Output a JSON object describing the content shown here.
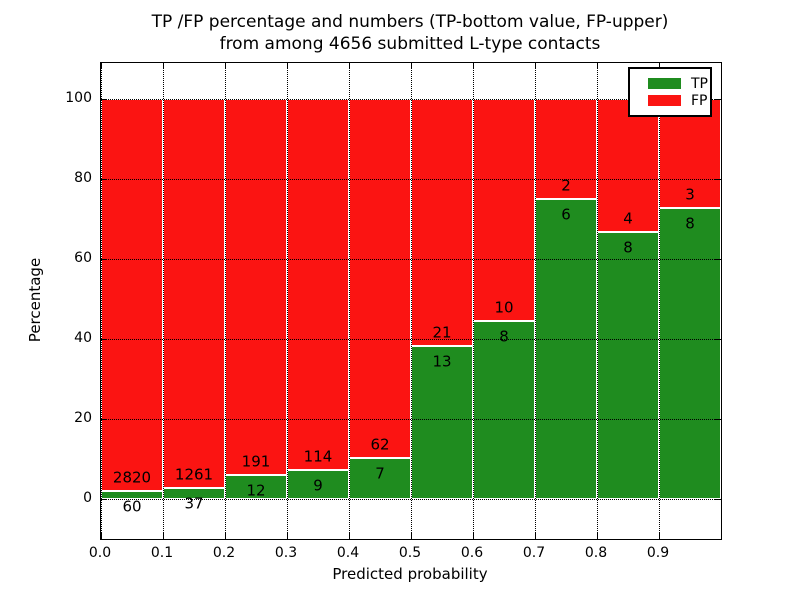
{
  "chart_data": {
    "type": "bar",
    "stacked": true,
    "title_line1": "TP /FP percentage and numbers (TP-bottom value, FP-upper)",
    "title_line2": "from among 4656 submitted L-type contacts",
    "total_submitted_contacts": 4656,
    "xlabel": "Predicted probability",
    "ylabel": "Percentage",
    "xlim": [
      0.0,
      1.0
    ],
    "ylim": [
      -10,
      109
    ],
    "grid": "dotted",
    "x_tick_labels": [
      "0.0",
      "0.1",
      "0.2",
      "0.3",
      "0.4",
      "0.5",
      "0.6",
      "0.7",
      "0.8",
      "0.9"
    ],
    "y_tick_values": [
      0,
      20,
      40,
      60,
      80,
      100
    ],
    "y_tick_labels": [
      "0",
      "20",
      "40",
      "60",
      "80",
      "100"
    ],
    "bin_width": 0.1,
    "bins": [
      {
        "x_start": 0.0,
        "tp": 60,
        "fp": 2820,
        "tp_percent": 2.1,
        "fp_percent": 97.9
      },
      {
        "x_start": 0.1,
        "tp": 37,
        "fp": 1261,
        "tp_percent": 2.9,
        "fp_percent": 97.1
      },
      {
        "x_start": 0.2,
        "tp": 12,
        "fp": 191,
        "tp_percent": 5.9,
        "fp_percent": 94.1
      },
      {
        "x_start": 0.3,
        "tp": 9,
        "fp": 114,
        "tp_percent": 7.3,
        "fp_percent": 92.7
      },
      {
        "x_start": 0.4,
        "tp": 7,
        "fp": 62,
        "tp_percent": 10.1,
        "fp_percent": 89.9
      },
      {
        "x_start": 0.5,
        "tp": 13,
        "fp": 21,
        "tp_percent": 38.2,
        "fp_percent": 61.8
      },
      {
        "x_start": 0.6,
        "tp": 8,
        "fp": 10,
        "tp_percent": 44.4,
        "fp_percent": 55.6
      },
      {
        "x_start": 0.7,
        "tp": 6,
        "fp": 2,
        "tp_percent": 75.0,
        "fp_percent": 25.0
      },
      {
        "x_start": 0.8,
        "tp": 8,
        "fp": 4,
        "tp_percent": 66.7,
        "fp_percent": 33.3
      },
      {
        "x_start": 0.9,
        "tp": 8,
        "fp": 3,
        "tp_percent": 72.7,
        "fp_percent": 27.3
      }
    ],
    "colors": {
      "tp": "#1f8c1f",
      "fp": "#fb1412"
    },
    "legend": {
      "position": "upper right",
      "entries": [
        {
          "label": "TP",
          "color": "#1f8c1f"
        },
        {
          "label": "FP",
          "color": "#fb1412"
        }
      ]
    }
  }
}
